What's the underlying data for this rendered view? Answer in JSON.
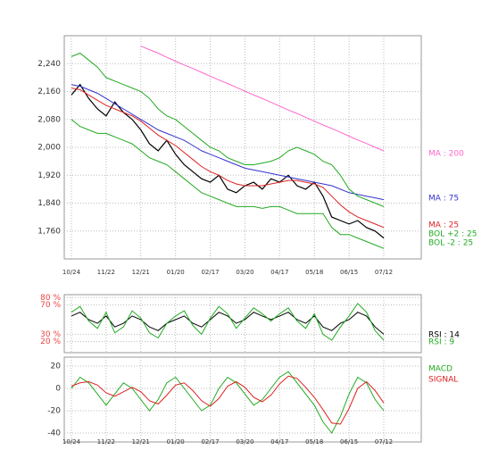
{
  "chart_data": [
    {
      "type": "line",
      "categories": [
        "10/24",
        null,
        null,
        null,
        "11/22",
        null,
        null,
        null,
        "12/21",
        null,
        null,
        null,
        "01/20",
        null,
        null,
        null,
        "02/17",
        null,
        null,
        null,
        "03/20",
        null,
        null,
        null,
        "04/17",
        null,
        null,
        null,
        "05/18",
        null,
        null,
        null,
        "06/15",
        null,
        null,
        null,
        "07/12"
      ],
      "ylim": [
        1680,
        2320
      ],
      "yticks": [
        {
          "value": 1760,
          "label": "1,760"
        },
        {
          "value": 1840,
          "label": "1,840"
        },
        {
          "value": 1920,
          "label": "1,920"
        },
        {
          "value": 2000,
          "label": "2,000"
        },
        {
          "value": 2080,
          "label": "2,080"
        },
        {
          "value": 2160,
          "label": "2,160"
        },
        {
          "value": 2240,
          "label": "2,240"
        }
      ],
      "grid": true,
      "series": [
        {
          "color": "#000000",
          "values": [
            2150,
            2180,
            2140,
            2110,
            2090,
            2130,
            2100,
            2080,
            2050,
            2010,
            1990,
            2020,
            1980,
            1950,
            1930,
            1910,
            1900,
            1920,
            1880,
            1870,
            1890,
            1900,
            1880,
            1910,
            1900,
            1920,
            1890,
            1880,
            1900,
            1860,
            1800,
            1790,
            1780,
            1790,
            1770,
            1760,
            1740
          ]
        },
        {
          "name": "MA : 200",
          "color": "#ff66cc",
          "values": [
            null,
            null,
            null,
            null,
            null,
            null,
            null,
            null,
            2290,
            2280,
            2270,
            2258,
            2247,
            2236,
            2226,
            2215,
            2204,
            2193,
            2183,
            2172,
            2161,
            2150,
            2140,
            2129,
            2118,
            2107,
            2097,
            2086,
            2075,
            2064,
            2054,
            2043,
            2032,
            2021,
            2011,
            2000,
            1990
          ]
        },
        {
          "name": "MA : 75",
          "color": "#3333cc",
          "values": [
            2180,
            2175,
            2165,
            2155,
            2140,
            2125,
            2110,
            2095,
            2080,
            2065,
            2050,
            2040,
            2030,
            2020,
            2005,
            1990,
            1980,
            1970,
            1960,
            1950,
            1940,
            1935,
            1930,
            1925,
            1920,
            1915,
            1910,
            1905,
            1900,
            1895,
            1890,
            1880,
            1870,
            1865,
            1860,
            1855,
            1850
          ]
        },
        {
          "name": "MA : 25",
          "color": "#dd2222",
          "values": [
            2170,
            2165,
            2150,
            2135,
            2120,
            2110,
            2100,
            2090,
            2075,
            2055,
            2035,
            2020,
            2005,
            1985,
            1965,
            1945,
            1930,
            1920,
            1905,
            1895,
            1890,
            1890,
            1890,
            1895,
            1900,
            1905,
            1905,
            1900,
            1895,
            1885,
            1860,
            1835,
            1815,
            1800,
            1790,
            1780,
            1770
          ]
        },
        {
          "name": "BOL +2 : 25",
          "color": "#22aa22",
          "values": [
            2260,
            2270,
            2250,
            2230,
            2200,
            2190,
            2180,
            2170,
            2160,
            2140,
            2110,
            2090,
            2080,
            2060,
            2040,
            2020,
            2000,
            1990,
            1970,
            1960,
            1950,
            1950,
            1955,
            1960,
            1970,
            1990,
            2000,
            1990,
            1980,
            1960,
            1950,
            1920,
            1880,
            1860,
            1850,
            1840,
            1830
          ]
        },
        {
          "name": "BOL -2 : 25",
          "color": "#22aa22",
          "values": [
            2080,
            2060,
            2050,
            2040,
            2040,
            2030,
            2020,
            2010,
            1990,
            1970,
            1960,
            1950,
            1930,
            1910,
            1890,
            1870,
            1860,
            1850,
            1840,
            1830,
            1830,
            1830,
            1825,
            1830,
            1830,
            1820,
            1810,
            1810,
            1810,
            1810,
            1770,
            1750,
            1750,
            1740,
            1730,
            1720,
            1710
          ]
        }
      ]
    },
    {
      "type": "line",
      "ylim": [
        5,
        84
      ],
      "yticks": [
        {
          "value": 20,
          "label": "20 %"
        },
        {
          "value": 30,
          "label": "30 %"
        },
        {
          "value": 70,
          "label": "70 %"
        },
        {
          "value": 80,
          "label": "80 %"
        }
      ],
      "grid": true,
      "series": [
        {
          "name": "RSI : 14",
          "color": "#000000",
          "values": [
            55,
            60,
            50,
            45,
            55,
            40,
            45,
            55,
            50,
            40,
            35,
            45,
            50,
            55,
            45,
            40,
            50,
            60,
            55,
            45,
            50,
            60,
            55,
            50,
            55,
            60,
            50,
            45,
            55,
            40,
            35,
            45,
            50,
            60,
            55,
            40,
            30
          ]
        },
        {
          "name": "RSI : 9",
          "color": "#22aa22",
          "values": [
            60,
            68,
            48,
            38,
            60,
            32,
            40,
            62,
            52,
            32,
            25,
            45,
            55,
            62,
            42,
            30,
            52,
            68,
            58,
            38,
            52,
            66,
            58,
            48,
            58,
            66,
            48,
            38,
            58,
            30,
            22,
            40,
            55,
            72,
            60,
            35,
            22
          ]
        }
      ]
    },
    {
      "type": "line",
      "ylim": [
        -48,
        28
      ],
      "yticks": [
        -40,
        -20,
        0,
        20
      ],
      "grid": true,
      "series": [
        {
          "name": "MACD",
          "color": "#22aa22",
          "values": [
            0,
            10,
            5,
            -5,
            -15,
            -5,
            5,
            0,
            -10,
            -20,
            -10,
            5,
            10,
            0,
            -10,
            -20,
            -15,
            0,
            10,
            5,
            -5,
            -15,
            -10,
            0,
            10,
            15,
            5,
            -5,
            -15,
            -30,
            -40,
            -25,
            -5,
            10,
            5,
            -10,
            -20
          ]
        },
        {
          "name": "SIGNAL",
          "color": "#dd2222",
          "values": [
            2,
            5,
            6,
            3,
            -4,
            -7,
            -3,
            1,
            -3,
            -11,
            -14,
            -6,
            3,
            5,
            -2,
            -11,
            -16,
            -9,
            2,
            6,
            1,
            -8,
            -12,
            -6,
            4,
            11,
            9,
            1,
            -8,
            -19,
            -31,
            -32,
            -18,
            0,
            6,
            -2,
            -13
          ]
        }
      ]
    }
  ]
}
